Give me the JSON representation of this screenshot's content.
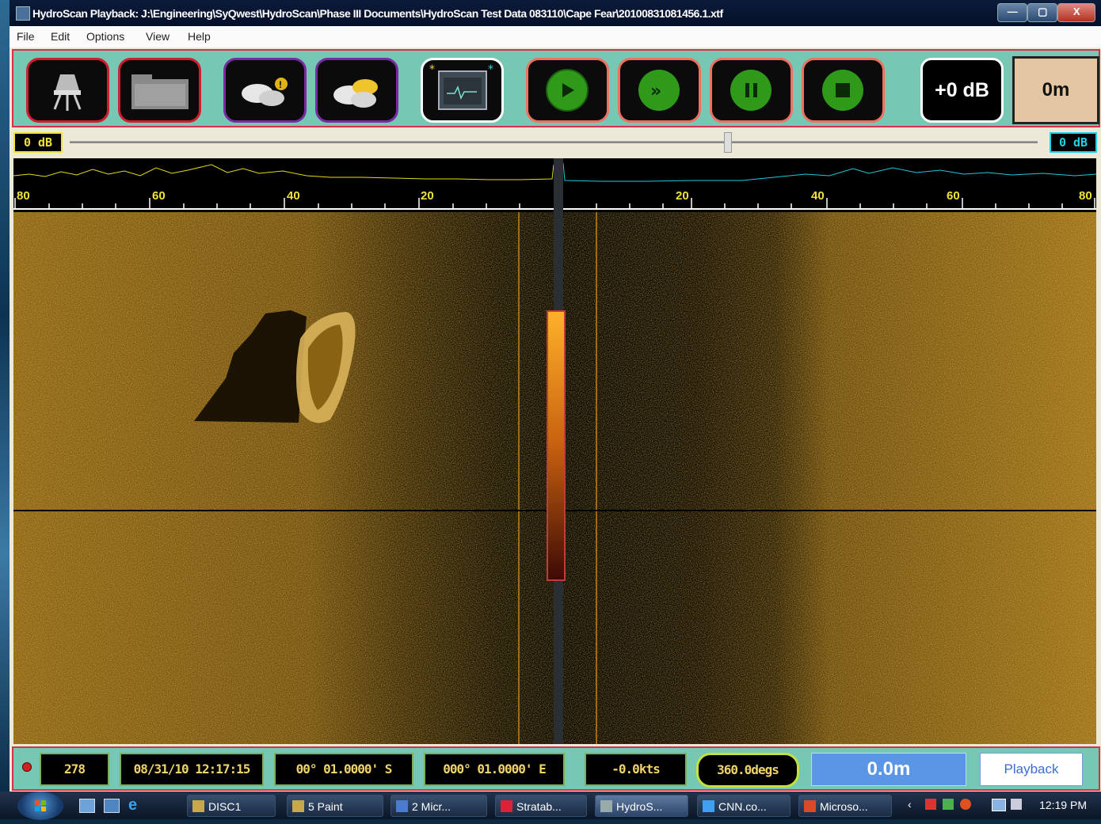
{
  "window": {
    "title": "HydroScan Playback: J:\\Engineering\\SyQwest\\HydroScan\\Phase III Documents\\HydroScan Test Data 083110\\Cape Fear\\20100831081456.1.xtf",
    "controls": {
      "minimize": "—",
      "maximize": "▢",
      "close": "X"
    }
  },
  "menu": {
    "items": [
      "File",
      "Edit",
      "Options",
      "View",
      "Help"
    ]
  },
  "toolbar": {
    "gain_label": "+0 dB",
    "range_label": "0m",
    "colors": {
      "bg": "#76c7b4",
      "border": "#d8304a",
      "play_green": "#2f9a1a"
    }
  },
  "slider": {
    "left_label": "0 dB",
    "right_label": "0 dB",
    "position_fraction": 0.68
  },
  "scale": {
    "left_ticks": [
      "80",
      "60",
      "40",
      "20"
    ],
    "right_ticks": [
      "20",
      "40",
      "60",
      "80"
    ]
  },
  "status": {
    "ping": "278",
    "datetime": "08/31/10 12:17:15",
    "latitude": "00° 01.0000' S",
    "longitude": "000° 01.0000' E",
    "speed": "-0.0kts",
    "heading": "360.0degs",
    "depth": "0.0m",
    "mode": "Playback"
  },
  "taskbar": {
    "items": [
      {
        "label": "DISC1",
        "active": false
      },
      {
        "label": "5 Paint",
        "active": false
      },
      {
        "label": "2 Micr...",
        "active": false
      },
      {
        "label": "Stratab...",
        "active": false
      },
      {
        "label": "HydroS...",
        "active": true
      },
      {
        "label": "CNN.co...",
        "active": false
      },
      {
        "label": "Microso...",
        "active": false
      }
    ],
    "clock": "12:19 PM"
  }
}
